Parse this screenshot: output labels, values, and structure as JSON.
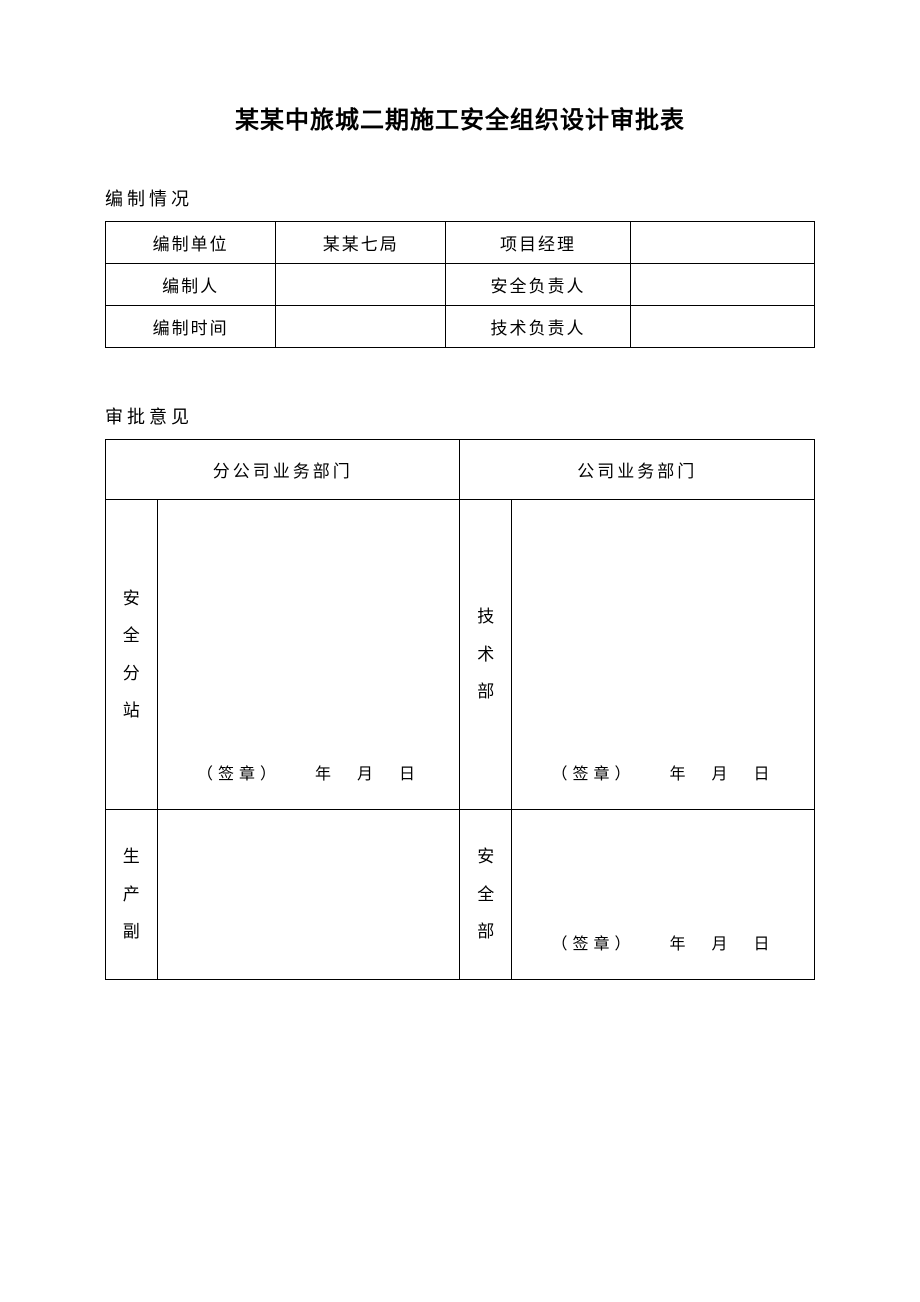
{
  "title": "某某中旅城二期施工安全组织设计审批表",
  "section1_label": "编制情况",
  "info_table": {
    "row1": {
      "label1": "编制单位",
      "value1": "某某七局",
      "label2": "项目经理",
      "value2": ""
    },
    "row2": {
      "label1": "编制人",
      "value1": "",
      "label2": "安全负责人",
      "value2": ""
    },
    "row3": {
      "label1": "编制时间",
      "value1": "",
      "label2": "技术负责人",
      "value2": ""
    }
  },
  "section2_label": "审批意见",
  "approval_table": {
    "header_left": "分公司业务部门",
    "header_right": "公司业务部门",
    "row1": {
      "left_label": "安全分站",
      "left_sign": "（签章）　　年　月　日",
      "right_label": "技术部",
      "right_sign": "（签章）　　年　月　日"
    },
    "row2": {
      "left_label": "生产副",
      "left_sign": "",
      "right_label": "安全部",
      "right_sign": "（签章）　　年　月　日"
    }
  },
  "colors": {
    "background": "#ffffff",
    "text": "#000000",
    "border": "#000000"
  }
}
